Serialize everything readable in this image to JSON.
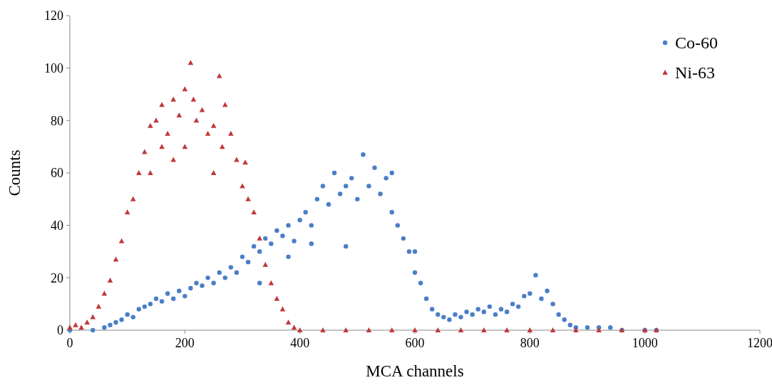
{
  "chart_data": {
    "type": "scatter",
    "xlabel": "MCA channels",
    "ylabel": "Counts",
    "xlim": [
      0,
      1200
    ],
    "xticks": [
      0,
      200,
      400,
      600,
      800,
      1000,
      1200
    ],
    "ylim": [
      0,
      120
    ],
    "yticks": [
      0,
      20,
      40,
      60,
      80,
      100,
      120
    ],
    "grid": false,
    "legend": "top right",
    "series": [
      {
        "name": "Co-60",
        "color": "#4a7ec8",
        "marker": "circle",
        "x": [
          0,
          40,
          60,
          70,
          80,
          90,
          100,
          110,
          120,
          130,
          140,
          150,
          160,
          170,
          180,
          190,
          200,
          210,
          220,
          230,
          240,
          250,
          260,
          270,
          280,
          290,
          300,
          310,
          320,
          330,
          330,
          340,
          350,
          360,
          370,
          380,
          380,
          390,
          400,
          410,
          420,
          420,
          430,
          440,
          450,
          460,
          470,
          480,
          480,
          490,
          500,
          510,
          520,
          530,
          540,
          550,
          560,
          560,
          570,
          580,
          590,
          600,
          600,
          610,
          620,
          630,
          640,
          650,
          660,
          670,
          680,
          690,
          700,
          710,
          720,
          730,
          740,
          750,
          760,
          770,
          780,
          790,
          800,
          810,
          820,
          830,
          840,
          850,
          860,
          870,
          880,
          900,
          920,
          940,
          960,
          1000,
          1020
        ],
        "values": [
          0,
          0,
          1,
          2,
          3,
          4,
          6,
          5,
          8,
          9,
          10,
          12,
          11,
          14,
          12,
          15,
          13,
          16,
          18,
          17,
          20,
          18,
          22,
          20,
          24,
          22,
          28,
          26,
          32,
          30,
          18,
          35,
          33,
          38,
          36,
          40,
          28,
          34,
          42,
          45,
          40,
          33,
          50,
          55,
          48,
          60,
          52,
          55,
          32,
          58,
          50,
          67,
          55,
          62,
          52,
          58,
          45,
          60,
          40,
          35,
          30,
          22,
          30,
          18,
          12,
          8,
          6,
          5,
          4,
          6,
          5,
          7,
          6,
          8,
          7,
          9,
          6,
          8,
          7,
          10,
          9,
          13,
          14,
          21,
          12,
          15,
          10,
          6,
          4,
          2,
          1,
          1,
          1,
          1,
          0,
          0,
          0
        ]
      },
      {
        "name": "Ni-63",
        "color": "#c0393b",
        "marker": "triangle",
        "x": [
          0,
          10,
          20,
          30,
          40,
          50,
          60,
          70,
          80,
          90,
          100,
          110,
          120,
          130,
          140,
          140,
          150,
          160,
          160,
          170,
          180,
          180,
          190,
          200,
          200,
          210,
          215,
          220,
          230,
          240,
          250,
          250,
          260,
          265,
          270,
          280,
          290,
          300,
          305,
          310,
          320,
          330,
          340,
          350,
          360,
          370,
          380,
          390,
          400,
          440,
          480,
          520,
          560,
          600,
          640,
          680,
          720,
          760,
          800,
          840,
          880,
          920,
          960,
          1000,
          1020
        ],
        "values": [
          1,
          2,
          1,
          3,
          5,
          9,
          14,
          19,
          27,
          34,
          45,
          50,
          60,
          68,
          78,
          60,
          80,
          86,
          70,
          75,
          88,
          65,
          82,
          92,
          70,
          102,
          88,
          80,
          84,
          75,
          78,
          60,
          97,
          70,
          86,
          75,
          65,
          55,
          64,
          50,
          45,
          35,
          25,
          18,
          12,
          8,
          3,
          1,
          0,
          0,
          0,
          0,
          0,
          0,
          0,
          0,
          0,
          0,
          0,
          0,
          0,
          0,
          0,
          0,
          0
        ]
      }
    ]
  }
}
